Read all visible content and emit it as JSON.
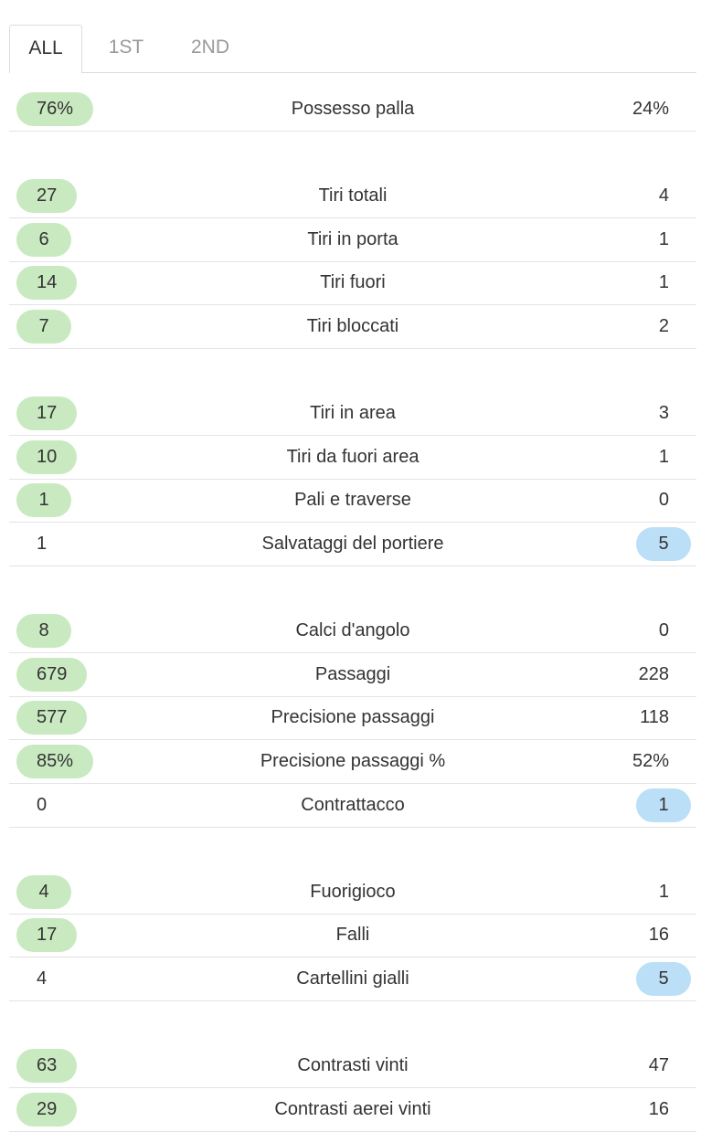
{
  "tabs": [
    "ALL",
    "1ST",
    "2ND"
  ],
  "groups": [
    [
      {
        "home": "76%",
        "label": "Possesso palla",
        "away": "24%"
      }
    ],
    [
      {
        "home": "27",
        "label": "Tiri totali",
        "away": "4"
      },
      {
        "home": "6",
        "label": "Tiri in porta",
        "away": "1"
      },
      {
        "home": "14",
        "label": "Tiri fuori",
        "away": "1"
      },
      {
        "home": "7",
        "label": "Tiri bloccati",
        "away": "2"
      }
    ],
    [
      {
        "home": "17",
        "label": "Tiri in area",
        "away": "3"
      },
      {
        "home": "10",
        "label": "Tiri da fuori area",
        "away": "1"
      },
      {
        "home": "1",
        "label": "Pali e traverse",
        "away": "0"
      },
      {
        "home": "1",
        "label": "Salvataggi del portiere",
        "away": "5"
      }
    ],
    [
      {
        "home": "8",
        "label": "Calci d'angolo",
        "away": "0"
      },
      {
        "home": "679",
        "label": "Passaggi",
        "away": "228"
      },
      {
        "home": "577",
        "label": "Precisione passaggi",
        "away": "118"
      },
      {
        "home": "85%",
        "label": "Precisione passaggi %",
        "away": "52%"
      },
      {
        "home": "0",
        "label": "Contrattacco",
        "away": "1"
      }
    ],
    [
      {
        "home": "4",
        "label": "Fuorigioco",
        "away": "1"
      },
      {
        "home": "17",
        "label": "Falli",
        "away": "16"
      },
      {
        "home": "4",
        "label": "Cartellini gialli",
        "away": "5"
      }
    ],
    [
      {
        "home": "63",
        "label": "Contrasti vinti",
        "away": "47"
      },
      {
        "home": "29",
        "label": "Contrasti aerei vinti",
        "away": "16"
      }
    ]
  ]
}
